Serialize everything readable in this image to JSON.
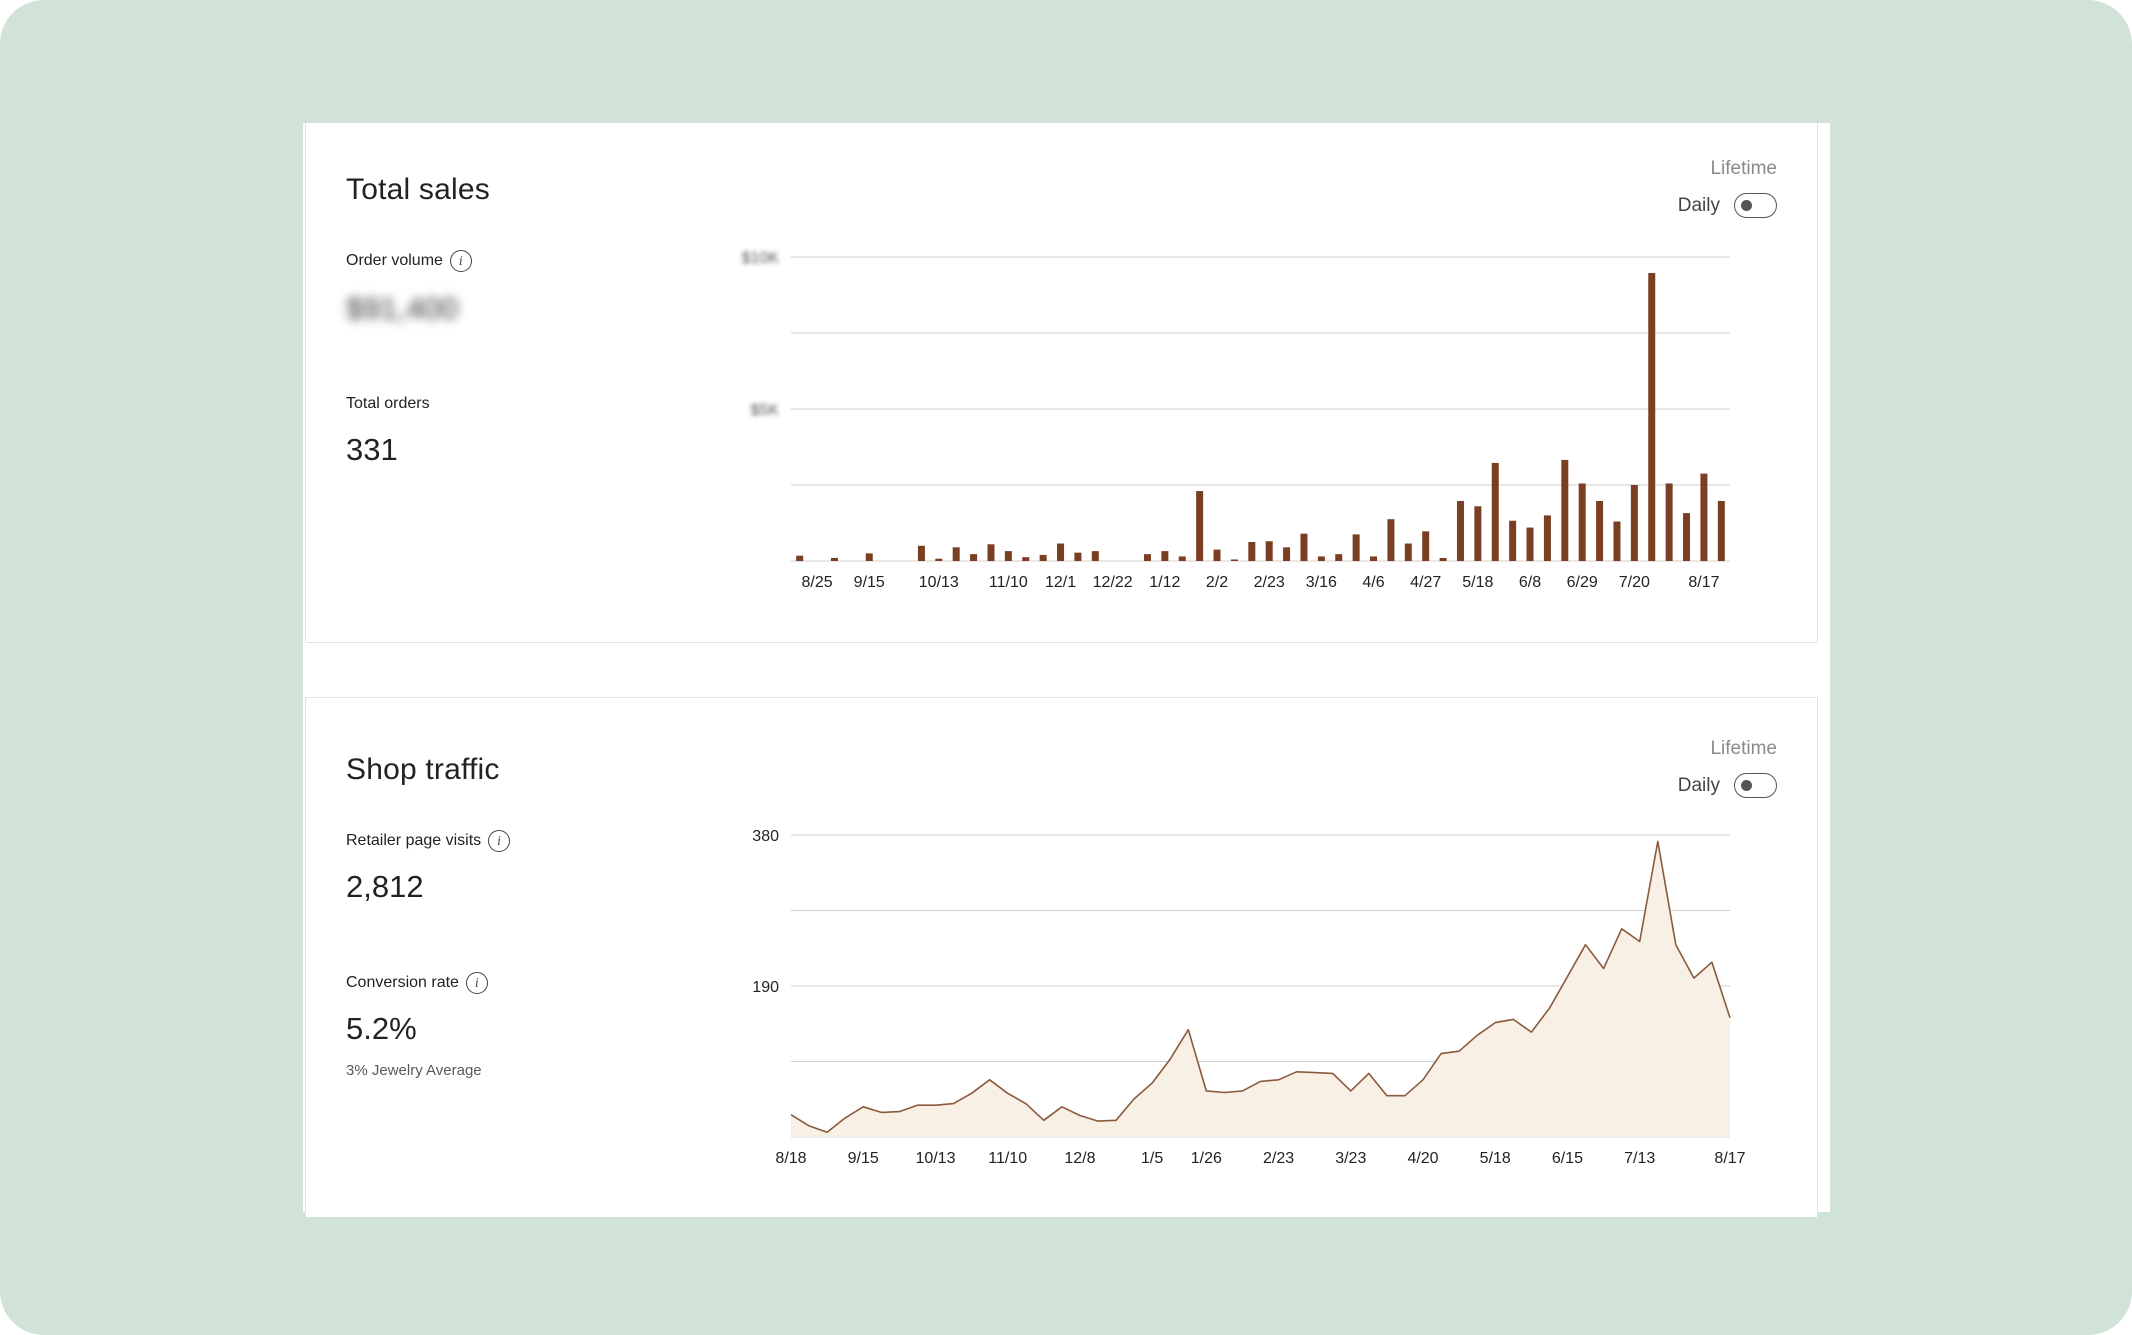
{
  "colors": {
    "background": "#d1e2d6",
    "bar": "#7a3e22",
    "line": "#8a5a3c",
    "area": "#f8f0e4",
    "grid": "#cfcfcf"
  },
  "sales": {
    "title": "Total sales",
    "period": "Lifetime",
    "daily_label": "Daily",
    "order_volume_label": "Order volume",
    "order_volume_value": "$91,400",
    "total_orders_label": "Total orders",
    "total_orders_value": "331"
  },
  "traffic": {
    "title": "Shop traffic",
    "period": "Lifetime",
    "daily_label": "Daily",
    "visits_label": "Retailer page visits",
    "visits_value": "2,812",
    "conversion_label": "Conversion rate",
    "conversion_value": "5.2%",
    "conversion_note": "3% Jewelry Average"
  },
  "chart_data": [
    {
      "type": "bar",
      "ytick_labels": [
        "$10K",
        "$5K"
      ],
      "ytick_values": [
        4,
        2
      ],
      "ylim": [
        0,
        4
      ],
      "grid": true,
      "xtick_labels": [
        "8/25",
        "9/15",
        "10/13",
        "11/10",
        "12/1",
        "12/22",
        "1/12",
        "2/2",
        "2/23",
        "3/16",
        "4/6",
        "4/27",
        "5/18",
        "6/8",
        "6/29",
        "7/20",
        "8/17"
      ],
      "xtick_positions": [
        1,
        4,
        8,
        12,
        15,
        18,
        21,
        24,
        27,
        30,
        33,
        36,
        39,
        42,
        45,
        48,
        52
      ],
      "values": [
        0.07,
        0,
        0.04,
        0,
        0.1,
        0,
        0,
        0.2,
        0.03,
        0.18,
        0.09,
        0.22,
        0.13,
        0.05,
        0.08,
        0.23,
        0.11,
        0.13,
        0,
        0,
        0.09,
        0.13,
        0.06,
        0.92,
        0.15,
        0.02,
        0.25,
        0.26,
        0.18,
        0.36,
        0.06,
        0.09,
        0.35,
        0.06,
        0.55,
        0.23,
        0.39,
        0.04,
        0.79,
        0.72,
        1.29,
        0.53,
        0.44,
        0.6,
        1.33,
        1.02,
        0.79,
        0.52,
        1.0,
        3.79,
        1.02,
        0.63,
        1.15,
        0.79
      ]
    },
    {
      "type": "area",
      "ytick_labels": [
        "380",
        "190"
      ],
      "ytick_values": [
        380,
        190
      ],
      "ylim": [
        0,
        380
      ],
      "grid": true,
      "xtick_labels": [
        "8/18",
        "9/15",
        "10/13",
        "11/10",
        "12/8",
        "1/5",
        "1/26",
        "2/23",
        "3/23",
        "4/20",
        "5/18",
        "6/15",
        "7/13",
        "8/17"
      ],
      "xtick_positions": [
        0,
        4,
        8,
        12,
        16,
        20,
        23,
        27,
        31,
        35,
        39,
        43,
        47,
        52
      ],
      "values": [
        28,
        14,
        6,
        24,
        38,
        31,
        32,
        40,
        40,
        42,
        55,
        72,
        55,
        42,
        21,
        38,
        27,
        20,
        21,
        48,
        68,
        98,
        135,
        58,
        56,
        58,
        70,
        72,
        82,
        81,
        80,
        58,
        80,
        52,
        52,
        72,
        105,
        108,
        128,
        144,
        148,
        132,
        162,
        202,
        242,
        212,
        262,
        246,
        372,
        242,
        200,
        220,
        150
      ]
    }
  ]
}
